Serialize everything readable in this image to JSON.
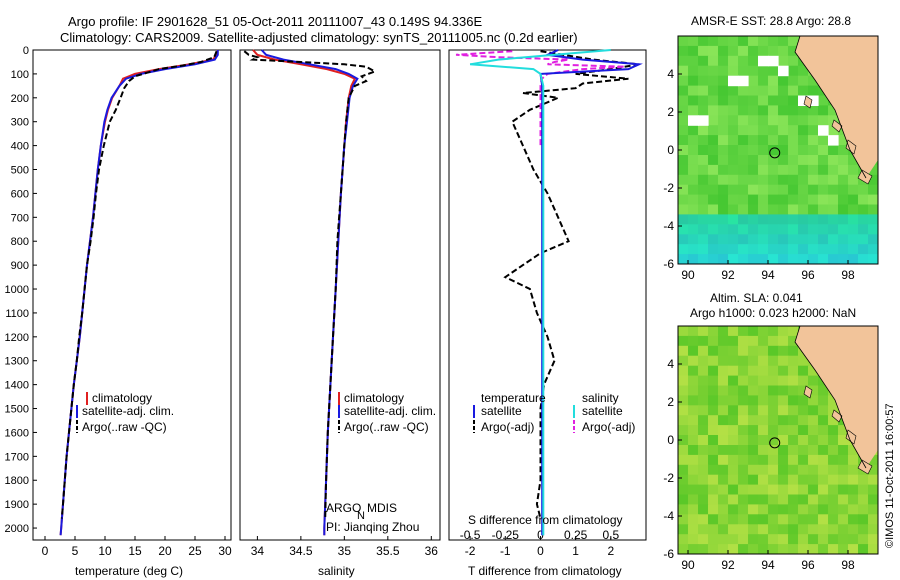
{
  "header": {
    "line1": "Argo profile: IF 2901628_51 05-Oct-2011 20111007_43 0.149S 94.336E",
    "line2": "Climatology: CARS2009. Satellite-adjusted climatology: synTS_20111005.nc (0.2d earlier)"
  },
  "colors": {
    "climatology": "#e02020",
    "satellite": "#1a1adf",
    "argo": "#000000",
    "cyan": "#22dddd",
    "magenta": "#e020e0",
    "land": "#f2c49a"
  },
  "depth_axis": {
    "ticks": [
      "0",
      "100",
      "200",
      "300",
      "400",
      "500",
      "600",
      "700",
      "800",
      "900",
      "1000",
      "1100",
      "1200",
      "1300",
      "1400",
      "1500",
      "1600",
      "1700",
      "1800",
      "1900",
      "2000"
    ]
  },
  "chart_data": [
    {
      "type": "line",
      "id": "temperature",
      "xlabel": "temperature (deg C)",
      "xticks": [
        "0",
        "5",
        "10",
        "15",
        "20",
        "25",
        "30"
      ],
      "xlim": [
        -2,
        31
      ],
      "ylim": [
        0,
        2050
      ],
      "y_inverted": true,
      "legend": [
        "climatology",
        "satellite-adj. clim.",
        "Argo(..raw -QC)"
      ],
      "series": [
        {
          "name": "climatology",
          "depth": [
            0,
            20,
            40,
            60,
            80,
            100,
            120,
            150,
            200,
            250,
            300,
            400,
            500,
            600,
            700,
            800,
            900,
            1000,
            1100,
            1200,
            1300,
            1400,
            1500,
            1600,
            1700,
            1800,
            1900,
            2000,
            2030
          ],
          "values": [
            28.8,
            28.6,
            28.0,
            24,
            19,
            15,
            13,
            12.4,
            11.2,
            10.5,
            10,
            9.3,
            8.8,
            8.4,
            8.0,
            7.5,
            7.0,
            6.6,
            6.2,
            5.8,
            5.3,
            4.8,
            4.4,
            4.0,
            3.6,
            3.3,
            3.0,
            2.7,
            2.6
          ]
        },
        {
          "name": "satellite-adj. clim.",
          "depth": [
            0,
            20,
            40,
            60,
            80,
            100,
            120,
            150,
            200,
            250,
            300,
            400,
            500,
            600,
            700,
            800,
            900,
            1000,
            1100,
            1200,
            1300,
            1400,
            1500,
            1600,
            1700,
            1800,
            1900,
            2000,
            2030
          ],
          "values": [
            28.8,
            28.8,
            28.3,
            25,
            20,
            16,
            13.5,
            12.4,
            11.1,
            10.4,
            9.9,
            9.3,
            8.8,
            8.4,
            8.0,
            7.5,
            7.0,
            6.6,
            6.2,
            5.8,
            5.3,
            4.8,
            4.4,
            4.0,
            3.6,
            3.3,
            3.0,
            2.7,
            2.6
          ]
        },
        {
          "name": "Argo(..raw -QC)",
          "depth": [
            5,
            30,
            50,
            65,
            80,
            95,
            110,
            130,
            160,
            200,
            250,
            300,
            350,
            400,
            500,
            600,
            700,
            800,
            900,
            1000,
            1100,
            1200,
            1300,
            1400,
            1500,
            1600,
            1700,
            1800,
            1900,
            1960
          ],
          "values": [
            28.6,
            28.2,
            26,
            23,
            19,
            17,
            15,
            14,
            13.2,
            12.6,
            11.8,
            10.8,
            10.3,
            9.8,
            9.0,
            8.5,
            8.1,
            7.6,
            7.0,
            6.6,
            6.2,
            5.7,
            5.3,
            4.8,
            4.4,
            4.0,
            3.6,
            3.3,
            3.0,
            2.8
          ]
        }
      ]
    },
    {
      "type": "line",
      "id": "salinity",
      "xlabel": "salinity",
      "xticks": [
        "34",
        "34.5",
        "35",
        "35.5",
        "36"
      ],
      "xlim": [
        33.8,
        36.1
      ],
      "ylim": [
        0,
        2050
      ],
      "y_inverted": true,
      "legend": [
        "climatology",
        "satellite-adj. clim.",
        "Argo(..raw -QC)"
      ],
      "series": [
        {
          "name": "climatology",
          "depth": [
            0,
            20,
            40,
            60,
            80,
            100,
            120,
            150,
            200,
            300,
            400,
            500,
            600,
            800,
            1000,
            1200,
            1400,
            1600,
            1800,
            2000,
            2030
          ],
          "values": [
            33.95,
            34.0,
            34.2,
            34.5,
            34.8,
            35.0,
            35.12,
            35.08,
            35.05,
            35.02,
            35.0,
            34.98,
            34.96,
            34.93,
            34.9,
            34.87,
            34.84,
            34.81,
            34.79,
            34.77,
            34.77
          ]
        },
        {
          "name": "satellite-adj. clim.",
          "depth": [
            0,
            20,
            40,
            60,
            80,
            100,
            120,
            150,
            200,
            300,
            400,
            500,
            600,
            800,
            1000,
            1200,
            1400,
            1600,
            1800,
            2000,
            2030
          ],
          "values": [
            34.05,
            34.1,
            34.3,
            34.6,
            34.9,
            35.05,
            35.15,
            35.1,
            35.06,
            35.03,
            35.0,
            34.98,
            34.96,
            34.93,
            34.9,
            34.87,
            34.84,
            34.81,
            34.79,
            34.77,
            34.77
          ]
        },
        {
          "name": "Argo(..raw -QC)",
          "depth": [
            5,
            20,
            30,
            40,
            50,
            60,
            70,
            90,
            110,
            130,
            150,
            200,
            300,
            400,
            500,
            600,
            700,
            800,
            1000,
            1200,
            1400,
            1600,
            1800,
            1960
          ],
          "values": [
            33.85,
            33.9,
            34.0,
            33.95,
            34.5,
            35.0,
            35.25,
            35.35,
            35.2,
            35.25,
            35.12,
            35.05,
            35.02,
            35.0,
            34.98,
            34.96,
            34.94,
            34.92,
            34.9,
            34.87,
            34.84,
            34.81,
            34.79,
            34.78
          ]
        }
      ],
      "annotations": [
        "ARGO",
        "N",
        "MDIS",
        "PI: Jianqing Zhou"
      ]
    },
    {
      "type": "line",
      "id": "difference",
      "xlabel": "T difference from climatology",
      "xlabel_top": "S difference from climatology",
      "xticks": [
        "-2",
        "-1",
        "0",
        "1",
        "2"
      ],
      "xticks_top": [
        "-0.5",
        "-0.25",
        "0",
        "0.25",
        "0.5"
      ],
      "xlim": [
        -2.6,
        3.0
      ],
      "ylim": [
        0,
        2050
      ],
      "y_inverted": true,
      "legend_headers": [
        "temperature",
        "salinity"
      ],
      "legend": [
        "satellite",
        "Argo(-adj)",
        "satellite",
        "Argo(-adj)"
      ],
      "series": [
        {
          "name": "satellite (temperature)",
          "depth": [
            0,
            20,
            40,
            60,
            80,
            100,
            150,
            200,
            300,
            500,
            800,
            1200,
            1600,
            2030
          ],
          "values": [
            0.5,
            0.2,
            1.2,
            2.8,
            2.5,
            0.0,
            0.05,
            0.05,
            0.05,
            0.05,
            0.05,
            0.05,
            0.05,
            0.05
          ]
        },
        {
          "name": "Argo(-adj) (temperature)",
          "depth": [
            5,
            40,
            60,
            80,
            100,
            120,
            140,
            160,
            180,
            200,
            250,
            300,
            400,
            500,
            600,
            700,
            800,
            850,
            900,
            950,
            1000,
            1100,
            1200,
            1300,
            1400,
            1500,
            1600,
            1800,
            1900,
            1960
          ],
          "values": [
            0.0,
            1.5,
            2.8,
            2.0,
            1.0,
            2.5,
            1.2,
            1.0,
            -0.5,
            0.5,
            -0.3,
            -0.8,
            -0.5,
            -0.2,
            0.2,
            0.5,
            0.8,
            0.0,
            -0.5,
            -1.0,
            -0.3,
            -0.1,
            0.2,
            0.4,
            0.1,
            0.0,
            0.0,
            0.0,
            -0.1,
            0.0
          ]
        },
        {
          "name": "satellite (salinity)",
          "depth": [
            0,
            20,
            40,
            60,
            80,
            100,
            150,
            200,
            400,
            800,
            1200,
            1600,
            2030
          ],
          "values": [
            0.5,
            0.1,
            -0.3,
            -0.5,
            -0.05,
            0.0,
            0.02,
            0.02,
            0.02,
            0.02,
            0.02,
            0.02,
            0.02
          ]
        },
        {
          "name": "Argo(-adj) (salinity)",
          "depth": [
            5,
            20,
            30,
            40,
            50,
            60,
            70,
            80,
            100,
            120,
            150,
            200,
            400
          ],
          "values": [
            -0.2,
            -0.6,
            -0.3,
            0.2,
            0.1,
            0.05,
            0.6,
            0.3,
            0.05,
            0.01,
            0.0,
            0.0,
            0.0
          ]
        }
      ]
    },
    {
      "type": "heatmap",
      "id": "sst_map",
      "title": "AMSR-E SST: 28.8 Argo: 28.8",
      "xticks": [
        "90",
        "92",
        "94",
        "96",
        "98"
      ],
      "yticks": [
        "4",
        "2",
        "0",
        "-2",
        "-4",
        "-6"
      ],
      "xlim": [
        89.5,
        99.5
      ],
      "ylim": [
        -6,
        6
      ],
      "marker": {
        "lon": 94.336,
        "lat": -0.149
      }
    },
    {
      "type": "heatmap",
      "id": "sla_map",
      "title": "Altim. SLA: 0.041",
      "subtitle": "Argo h1000: 0.023 h2000: NaN",
      "xticks": [
        "90",
        "92",
        "94",
        "96",
        "98"
      ],
      "yticks": [
        "4",
        "2",
        "0",
        "-2",
        "-4",
        "-6"
      ],
      "xlim": [
        89.5,
        99.5
      ],
      "ylim": [
        -6,
        6
      ],
      "marker": {
        "lon": 94.336,
        "lat": -0.149
      }
    }
  ],
  "copyright": "©IMOS 11-Oct-2011 16:00:57"
}
